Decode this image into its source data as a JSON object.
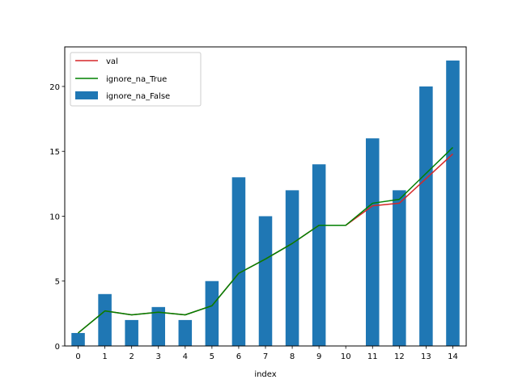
{
  "chart_data": {
    "type": "bar",
    "x": [
      0,
      1,
      2,
      3,
      4,
      5,
      6,
      7,
      8,
      9,
      10,
      11,
      12,
      13,
      14
    ],
    "categories": [
      "0",
      "1",
      "2",
      "3",
      "4",
      "5",
      "6",
      "7",
      "8",
      "9",
      "10",
      "11",
      "12",
      "13",
      "14"
    ],
    "xlabel": "index",
    "ylabel": "",
    "title": "",
    "ylim": [
      0,
      23.05
    ],
    "yticks": [
      0,
      5,
      10,
      15,
      20
    ],
    "ytick_labels": [
      "0",
      "5",
      "10",
      "15",
      "20"
    ],
    "grid": false,
    "legend_position": "upper left",
    "series": [
      {
        "name": "ignore_na_False",
        "kind": "bar",
        "color": "#1f77b4",
        "values": [
          1,
          4,
          2,
          3,
          2,
          5,
          13,
          10,
          12,
          14,
          null,
          16,
          12,
          20,
          22
        ]
      },
      {
        "name": "val",
        "kind": "line",
        "color": "#d62728",
        "values": [
          1,
          2.7,
          2.4,
          2.6,
          2.4,
          3.1,
          5.6,
          6.7,
          7.9,
          9.3,
          9.3,
          10.8,
          11.0,
          12.9,
          14.8
        ]
      },
      {
        "name": "ignore_na_True",
        "kind": "line",
        "color": "#008000",
        "values": [
          1,
          2.7,
          2.4,
          2.6,
          2.4,
          3.1,
          5.6,
          6.7,
          7.9,
          9.3,
          9.3,
          11.0,
          11.3,
          13.3,
          15.3
        ]
      }
    ],
    "legend_order": [
      "val",
      "ignore_na_True",
      "ignore_na_False"
    ]
  }
}
